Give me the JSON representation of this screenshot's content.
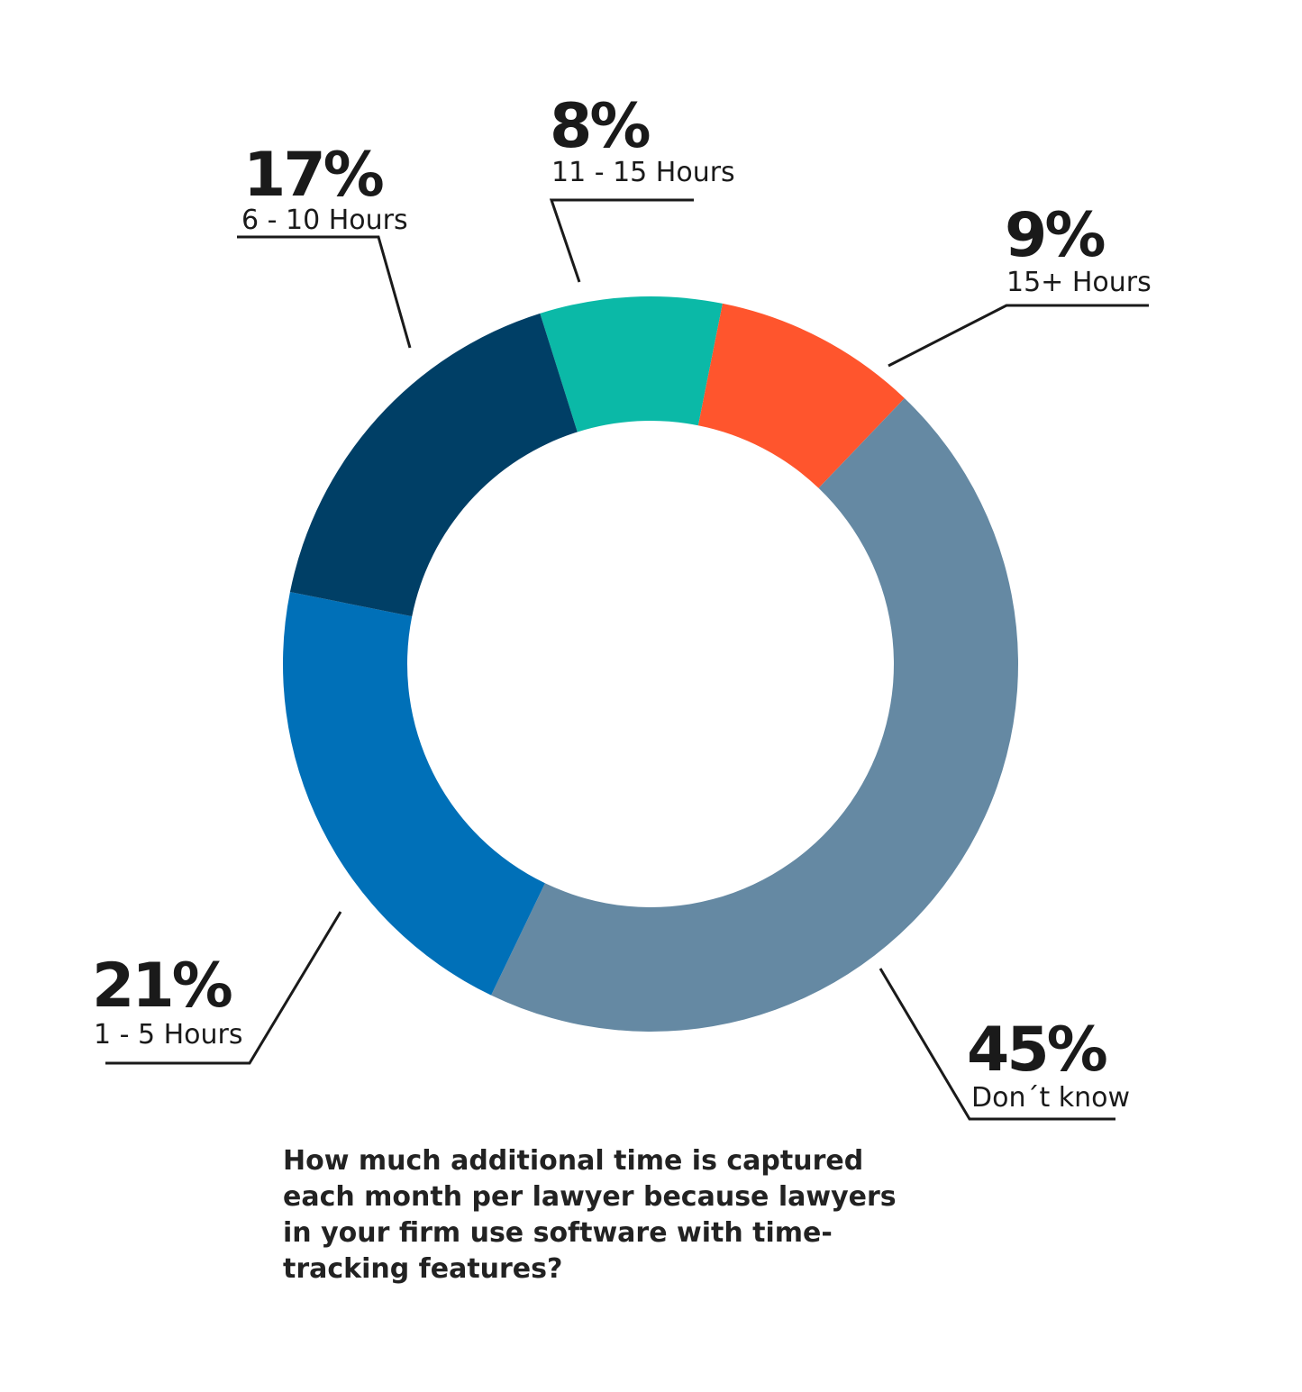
{
  "chart_data": {
    "type": "pie",
    "donut": true,
    "title_lines": [
      "How much additional time is captured",
      "each month per lawyer because lawyers",
      "in your firm use software with time-",
      "tracking features?"
    ],
    "slices": [
      {
        "label": "11 - 15 Hours",
        "value": 8,
        "value_label": "8%",
        "color": "#0BB9A7"
      },
      {
        "label": "15+ Hours",
        "value": 9,
        "value_label": "9%",
        "color": "#FF552D"
      },
      {
        "label": "Don´t know",
        "value": 45,
        "value_label": "45%",
        "color": "#6589A3"
      },
      {
        "label": "1 - 5 Hours",
        "value": 21,
        "value_label": "21%",
        "color": "#0070B8"
      },
      {
        "label": "6 - 10 Hours",
        "value": 17,
        "value_label": "17%",
        "color": "#003F66"
      }
    ]
  }
}
